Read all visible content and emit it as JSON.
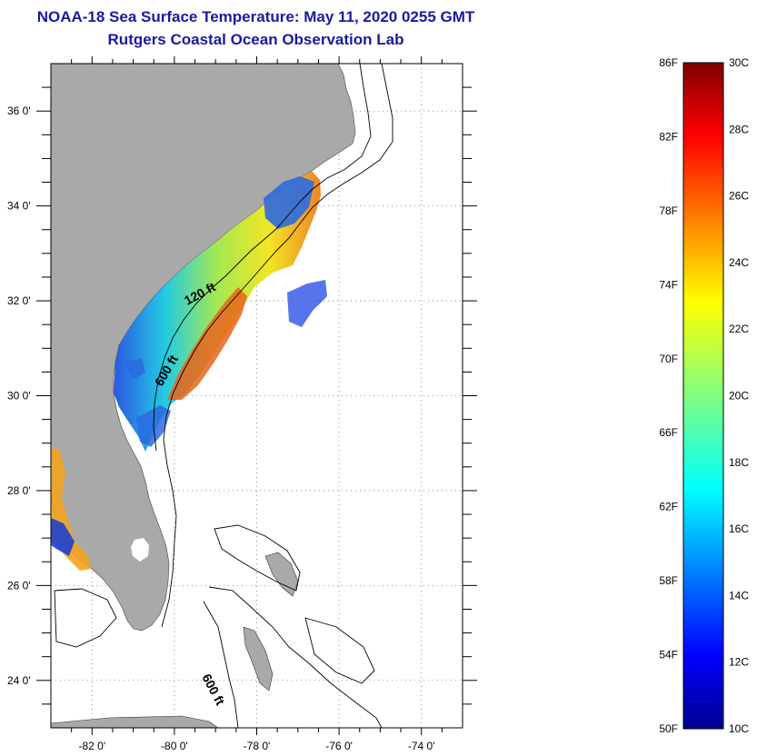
{
  "title": {
    "line1": "NOAA-18 Sea Surface Temperature:  May 11, 2020 0255 GMT",
    "line2": "Rutgers Coastal Ocean Observation Lab"
  },
  "map": {
    "lon_ticks": [
      {
        "value": -82,
        "label": "-82 0'"
      },
      {
        "value": -80,
        "label": "-80 0'"
      },
      {
        "value": -78,
        "label": "-78 0'"
      },
      {
        "value": -76,
        "label": "-76 0'"
      },
      {
        "value": -74,
        "label": "-74 0'"
      }
    ],
    "lat_ticks": [
      {
        "value": 36,
        "label": "36 0'"
      },
      {
        "value": 34,
        "label": "34 0'"
      },
      {
        "value": 32,
        "label": "32 0'"
      },
      {
        "value": 30,
        "label": "30 0'"
      },
      {
        "value": 28,
        "label": "28 0'"
      },
      {
        "value": 26,
        "label": "26 0'"
      },
      {
        "value": 24,
        "label": "24 0'"
      }
    ],
    "lon_range": [
      -83,
      -73
    ],
    "lat_range": [
      23,
      37
    ],
    "contour_labels": [
      {
        "text": "120 ft"
      },
      {
        "text": "600 ft"
      },
      {
        "text": "600 ft"
      }
    ],
    "colors": {
      "land": "#a9a9a9",
      "ocean": "#ffffff",
      "grid": "#666666",
      "contour": "#000000"
    }
  },
  "colorbar": {
    "fahrenheit_labels": [
      "86F",
      "82F",
      "78F",
      "74F",
      "70F",
      "66F",
      "62F",
      "58F",
      "54F",
      "50F"
    ],
    "celsius_labels": [
      "30C",
      "28C",
      "26C",
      "24C",
      "22C",
      "20C",
      "18C",
      "16C",
      "14C",
      "12C",
      "10C"
    ],
    "range_celsius": [
      10,
      30
    ],
    "colormap": "jet"
  }
}
